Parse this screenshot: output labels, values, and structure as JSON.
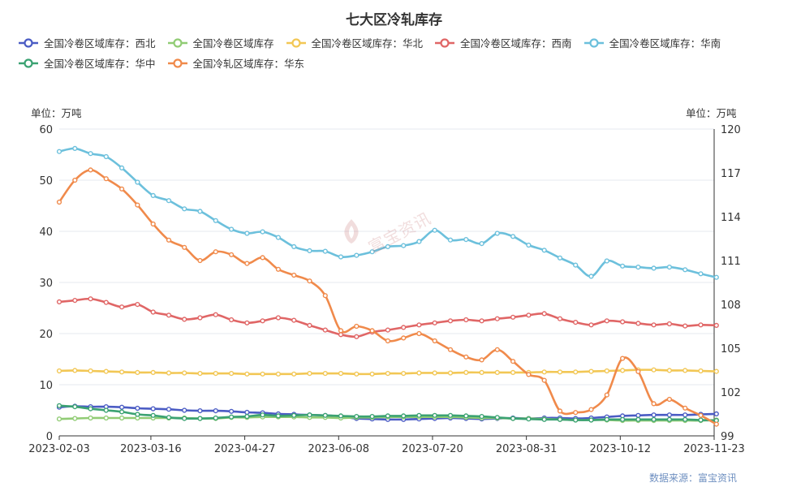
{
  "chart_data": {
    "type": "line",
    "title": "七大区冷轧库存",
    "left_unit": "单位：万吨",
    "right_unit": "单位：万吨",
    "source": "数据来源：富宝资讯",
    "watermark": "富宝资讯",
    "x_ticks": [
      "2023-02-03",
      "2023-03-16",
      "2023-04-27",
      "2023-06-08",
      "2023-07-20",
      "2023-08-31",
      "2023-10-12",
      "2023-11-23"
    ],
    "x": [
      "2023-02-03",
      "2023-02-10",
      "2023-02-17",
      "2023-02-24",
      "2023-03-03",
      "2023-03-10",
      "2023-03-17",
      "2023-03-24",
      "2023-03-31",
      "2023-04-07",
      "2023-04-14",
      "2023-04-21",
      "2023-04-28",
      "2023-05-05",
      "2023-05-12",
      "2023-05-19",
      "2023-05-26",
      "2023-06-02",
      "2023-06-09",
      "2023-06-16",
      "2023-06-23",
      "2023-06-30",
      "2023-07-07",
      "2023-07-14",
      "2023-07-21",
      "2023-07-28",
      "2023-08-04",
      "2023-08-11",
      "2023-08-18",
      "2023-08-25",
      "2023-09-01",
      "2023-09-08",
      "2023-09-15",
      "2023-09-22",
      "2023-09-29",
      "2023-10-06",
      "2023-10-13",
      "2023-10-20",
      "2023-10-27",
      "2023-11-03",
      "2023-11-10",
      "2023-11-17",
      "2023-11-24"
    ],
    "y_left": {
      "min": 0,
      "max": 60,
      "ticks": [
        0,
        10,
        20,
        30,
        40,
        50,
        60
      ]
    },
    "y_right": {
      "min": 99,
      "max": 120,
      "ticks": [
        99,
        102,
        105,
        108,
        111,
        114,
        117,
        120
      ]
    },
    "series": [
      {
        "name": "全国冷卷区域库存：西北",
        "axis": "left",
        "color": "#4b5cc4",
        "values": [
          5.6,
          5.8,
          5.7,
          5.7,
          5.6,
          5.4,
          5.3,
          5.2,
          5.0,
          4.9,
          4.9,
          4.8,
          4.6,
          4.5,
          4.3,
          4.2,
          4.1,
          4.0,
          3.8,
          3.4,
          3.3,
          3.2,
          3.2,
          3.3,
          3.4,
          3.5,
          3.4,
          3.3,
          3.4,
          3.5,
          3.4,
          3.5,
          3.5,
          3.4,
          3.5,
          3.7,
          3.9,
          4.0,
          4.1,
          4.1,
          4.1,
          4.2,
          4.3
        ]
      },
      {
        "name": "全国冷卷区域库存",
        "axis": "left",
        "color": "#91cc75",
        "values": [
          3.3,
          3.4,
          3.5,
          3.5,
          3.5,
          3.5,
          3.5,
          3.5,
          3.5,
          3.4,
          3.4,
          3.6,
          3.6,
          3.7,
          3.7,
          3.7,
          3.6,
          3.6,
          3.5,
          3.6,
          3.6,
          3.7,
          3.7,
          3.7,
          3.7,
          3.7,
          3.6,
          3.5,
          3.5,
          3.4,
          3.4,
          3.3,
          3.2,
          3.1,
          3.1,
          3.1,
          3.0,
          3.0,
          3.0,
          3.0,
          3.0,
          3.0,
          3.1
        ]
      },
      {
        "name": "全国冷卷区域库存：华北",
        "axis": "left",
        "color": "#f2c755",
        "values": [
          12.7,
          12.8,
          12.7,
          12.6,
          12.5,
          12.4,
          12.4,
          12.3,
          12.3,
          12.2,
          12.2,
          12.2,
          12.1,
          12.1,
          12.1,
          12.1,
          12.2,
          12.2,
          12.2,
          12.1,
          12.1,
          12.2,
          12.2,
          12.3,
          12.3,
          12.3,
          12.4,
          12.4,
          12.4,
          12.4,
          12.4,
          12.5,
          12.5,
          12.5,
          12.6,
          12.7,
          12.8,
          12.9,
          12.9,
          12.8,
          12.8,
          12.7,
          12.6
        ]
      },
      {
        "name": "全国冷卷区域库存：西南",
        "axis": "left",
        "color": "#e06666",
        "values": [
          26.2,
          26.5,
          26.8,
          26.1,
          25.2,
          25.7,
          24.2,
          23.6,
          22.8,
          23.1,
          23.7,
          22.7,
          22.1,
          22.5,
          23.1,
          22.6,
          21.6,
          20.7,
          19.8,
          19.4,
          20.3,
          20.7,
          21.2,
          21.7,
          22.1,
          22.5,
          22.7,
          22.5,
          22.9,
          23.2,
          23.6,
          23.9,
          22.9,
          22.2,
          21.7,
          22.5,
          22.3,
          22.0,
          21.7,
          21.9,
          21.5,
          21.7,
          21.6
        ]
      },
      {
        "name": "全国冷卷区域库存：华南",
        "axis": "left",
        "color": "#6cc0dc",
        "values": [
          55.6,
          56.2,
          55.2,
          54.6,
          52.4,
          49.6,
          47.0,
          46.0,
          44.4,
          43.9,
          42.1,
          40.4,
          39.6,
          39.9,
          38.8,
          37.0,
          36.2,
          36.1,
          35.0,
          35.3,
          36.0,
          37.0,
          37.2,
          38.0,
          40.2,
          38.3,
          38.4,
          37.6,
          39.6,
          39.0,
          37.3,
          36.3,
          34.8,
          33.4,
          31.2,
          34.2,
          33.2,
          33.0,
          32.8,
          33.0,
          32.5,
          31.7,
          31.0
        ]
      },
      {
        "name": "全国冷卷区域库存：华中",
        "axis": "left",
        "color": "#3ba272",
        "values": [
          5.9,
          5.7,
          5.3,
          5.0,
          4.7,
          4.2,
          4.0,
          3.6,
          3.4,
          3.4,
          3.5,
          3.7,
          3.8,
          4.1,
          3.9,
          4.0,
          4.1,
          4.0,
          3.9,
          3.8,
          3.8,
          3.9,
          3.9,
          4.0,
          4.0,
          4.0,
          3.9,
          3.8,
          3.6,
          3.4,
          3.3,
          3.2,
          3.2,
          3.1,
          3.1,
          3.2,
          3.2,
          3.2,
          3.2,
          3.2,
          3.2,
          3.1,
          3.0
        ]
      },
      {
        "name": "全国冷轧区域库存：华东",
        "axis": "right",
        "color": "#f08a4b",
        "values": [
          115.0,
          116.5,
          117.2,
          116.6,
          115.9,
          114.8,
          113.5,
          112.4,
          111.9,
          111.0,
          111.6,
          111.4,
          110.8,
          111.2,
          110.4,
          110.0,
          109.6,
          108.6,
          106.2,
          106.5,
          106.2,
          105.5,
          105.7,
          106.0,
          105.5,
          104.9,
          104.4,
          104.2,
          104.9,
          104.1,
          103.2,
          102.8,
          100.7,
          100.6,
          100.8,
          101.8,
          104.3,
          103.4,
          101.2,
          101.5,
          100.9,
          100.4,
          99.8
        ]
      }
    ]
  }
}
